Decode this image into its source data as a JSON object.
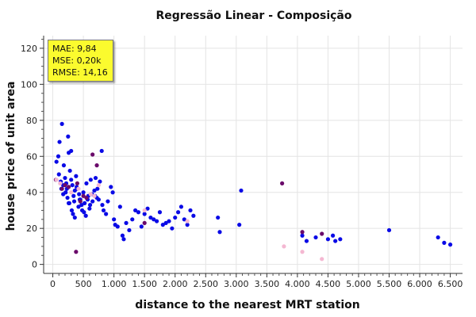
{
  "chart_data": {
    "type": "scatter",
    "title": "Regressão Linear - Composição",
    "xlabel": "distance to the nearest MRT station",
    "ylabel": "house price of unit area",
    "xlim": [
      -150,
      6700
    ],
    "ylim": [
      -5,
      127
    ],
    "x_ticks": [
      0,
      500,
      1000,
      1500,
      2000,
      2500,
      3000,
      3500,
      4000,
      4500,
      5000,
      5500,
      6000,
      6500
    ],
    "x_tick_labels": [
      "0",
      "500",
      "1.000",
      "1.500",
      "2.000",
      "2.500",
      "3.000",
      "3.500",
      "4.000",
      "4.500",
      "5.000",
      "5.500",
      "6.000",
      "6.500"
    ],
    "y_ticks": [
      0,
      20,
      40,
      60,
      80,
      100,
      120
    ],
    "y_tick_labels": [
      "0",
      "20",
      "40",
      "60",
      "80",
      "100",
      "120"
    ],
    "grid": true,
    "metrics": [
      "MAE: 9,84",
      "MSE: 0,20k",
      "RMSE: 14,16"
    ],
    "series": [
      {
        "color": "#0a0ae6",
        "points": [
          [
            60,
            57
          ],
          [
            90,
            60
          ],
          [
            110,
            68
          ],
          [
            140,
            42
          ],
          [
            150,
            78
          ],
          [
            180,
            55
          ],
          [
            200,
            48
          ],
          [
            220,
            45
          ],
          [
            250,
            71
          ],
          [
            260,
            62
          ],
          [
            280,
            52
          ],
          [
            300,
            63
          ],
          [
            320,
            44
          ],
          [
            340,
            38
          ],
          [
            350,
            35
          ],
          [
            380,
            49
          ],
          [
            400,
            42
          ],
          [
            420,
            32
          ],
          [
            450,
            36
          ],
          [
            480,
            30
          ],
          [
            500,
            40
          ],
          [
            520,
            34
          ],
          [
            550,
            45
          ],
          [
            580,
            38
          ],
          [
            600,
            31
          ],
          [
            620,
            47
          ],
          [
            650,
            35
          ],
          [
            680,
            41
          ],
          [
            700,
            48
          ],
          [
            720,
            37
          ],
          [
            750,
            36
          ],
          [
            800,
            63
          ],
          [
            830,
            30
          ],
          [
            870,
            28
          ],
          [
            900,
            35
          ],
          [
            950,
            43
          ],
          [
            980,
            40
          ],
          [
            1000,
            25
          ],
          [
            1020,
            22
          ],
          [
            1060,
            21
          ],
          [
            1100,
            32
          ],
          [
            1140,
            16
          ],
          [
            1160,
            14
          ],
          [
            1200,
            23
          ],
          [
            1250,
            19
          ],
          [
            1300,
            25
          ],
          [
            1350,
            30
          ],
          [
            1400,
            29
          ],
          [
            1450,
            21
          ],
          [
            1500,
            28
          ],
          [
            1550,
            31
          ],
          [
            1600,
            26
          ],
          [
            1650,
            25
          ],
          [
            1700,
            24
          ],
          [
            1750,
            29
          ],
          [
            1800,
            22
          ],
          [
            1850,
            23
          ],
          [
            1900,
            24
          ],
          [
            1950,
            20
          ],
          [
            2000,
            26
          ],
          [
            2050,
            29
          ],
          [
            2100,
            32
          ],
          [
            2150,
            25
          ],
          [
            2200,
            22
          ],
          [
            2250,
            30
          ],
          [
            2300,
            27
          ],
          [
            2700,
            26
          ],
          [
            2730,
            18
          ],
          [
            3050,
            22
          ],
          [
            3080,
            41
          ],
          [
            4080,
            16
          ],
          [
            4150,
            13
          ],
          [
            4300,
            15
          ],
          [
            4500,
            14
          ],
          [
            4580,
            16
          ],
          [
            4620,
            13
          ],
          [
            4700,
            14
          ],
          [
            5500,
            19
          ],
          [
            6300,
            15
          ],
          [
            6400,
            12
          ],
          [
            6500,
            11
          ],
          [
            100,
            50
          ],
          [
            130,
            46
          ],
          [
            170,
            44
          ],
          [
            210,
            40
          ],
          [
            240,
            37
          ],
          [
            270,
            34
          ],
          [
            310,
            30
          ],
          [
            330,
            28
          ],
          [
            360,
            26
          ],
          [
            390,
            43
          ],
          [
            430,
            39
          ],
          [
            470,
            33
          ],
          [
            510,
            29
          ],
          [
            540,
            27
          ],
          [
            570,
            36
          ],
          [
            610,
            33
          ],
          [
            640,
            39
          ],
          [
            690,
            38
          ],
          [
            730,
            42
          ],
          [
            770,
            46
          ],
          [
            810,
            33
          ],
          [
            170,
            39
          ],
          [
            230,
            42
          ],
          [
            260,
            34
          ],
          [
            300,
            47
          ],
          [
            360,
            41
          ],
          [
            440,
            36
          ]
        ]
      },
      {
        "color": "#6a0a6a",
        "points": [
          [
            50,
            47
          ],
          [
            150,
            42
          ],
          [
            200,
            44
          ],
          [
            260,
            43
          ],
          [
            400,
            45
          ],
          [
            450,
            35
          ],
          [
            500,
            38
          ],
          [
            550,
            37
          ],
          [
            650,
            61
          ],
          [
            720,
            55
          ],
          [
            1500,
            23
          ],
          [
            3750,
            45
          ],
          [
            4080,
            18
          ],
          [
            4400,
            17
          ],
          [
            380,
            7
          ]
        ]
      },
      {
        "color": "#f4b8d2",
        "points": [
          [
            60,
            47
          ],
          [
            120,
            45
          ],
          [
            300,
            40
          ],
          [
            420,
            42
          ],
          [
            620,
            39
          ],
          [
            680,
            38
          ],
          [
            750,
            44
          ],
          [
            1500,
            30
          ],
          [
            2200,
            24
          ],
          [
            3780,
            10
          ],
          [
            4080,
            7
          ],
          [
            4400,
            3
          ]
        ]
      }
    ]
  }
}
